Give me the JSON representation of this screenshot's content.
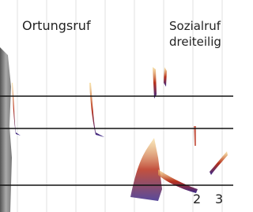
{
  "labels": {
    "left_call": "Ortungsruf",
    "right_call_line1": "Sozialruf",
    "right_call_line2": "dreiteilig",
    "part_2": "2",
    "part_3": "3"
  }
}
